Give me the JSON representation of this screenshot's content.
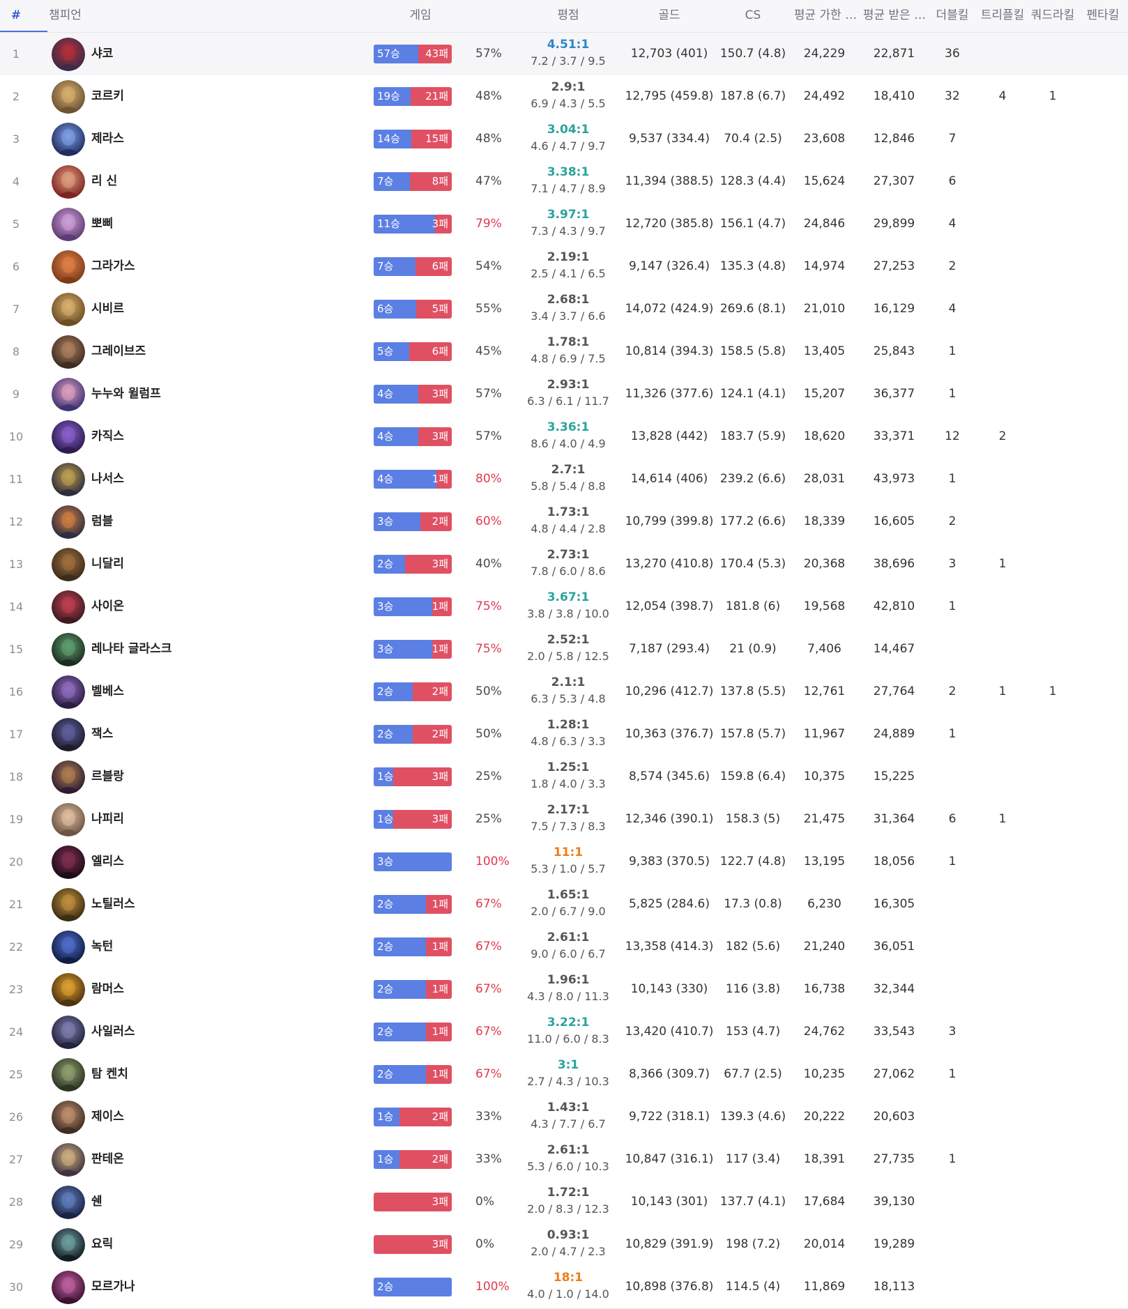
{
  "header": {
    "rank": "#",
    "champion": "챔피언",
    "games": "게임",
    "kda": "평점",
    "gold": "골드",
    "cs": "CS",
    "damage_dealt": "평균 가한 …",
    "damage_taken": "평균 받은 …",
    "double_kill": "더블킬",
    "triple_kill": "트리플킬",
    "quadra_kill": "쿼드라킬",
    "penta_kill": "펜타킬"
  },
  "colors": {
    "win": "#5b7fe3",
    "loss": "#e05063",
    "pct_red": "#e0394f",
    "kda_teal": "#2ba39b",
    "kda_blue": "#2f86c9",
    "kda_orange": "#f07c1a"
  },
  "rows": [
    {
      "rank": "1",
      "name": "샤코",
      "wins": 57,
      "losses": 43,
      "wins_label": "57승",
      "losses_label": "43패",
      "pct": "57%",
      "pct_style": "gray",
      "kda": "4.51:1",
      "kda_style": "blue",
      "kda_detail": "7.2 / 3.7 / 9.5",
      "gold": "12,703 (401)",
      "cs": "150.7 (4.8)",
      "dealt": "24,229",
      "taken": "22,871",
      "double": "36",
      "triple": "",
      "quadra": "",
      "penta": "",
      "avatar": [
        "#3a2a48",
        "#b3303a"
      ]
    },
    {
      "rank": "2",
      "name": "코르키",
      "wins": 19,
      "losses": 21,
      "wins_label": "19승",
      "losses_label": "21패",
      "pct": "48%",
      "pct_style": "gray",
      "kda": "2.9:1",
      "kda_style": "normal",
      "kda_detail": "6.9 / 4.3 / 5.5",
      "gold": "12,795 (459.8)",
      "cs": "187.8 (6.7)",
      "dealt": "24,492",
      "taken": "18,410",
      "double": "32",
      "triple": "4",
      "quadra": "1",
      "penta": "",
      "avatar": [
        "#6a5030",
        "#d9b070"
      ]
    },
    {
      "rank": "3",
      "name": "제라스",
      "wins": 14,
      "losses": 15,
      "wins_label": "14승",
      "losses_label": "15패",
      "pct": "48%",
      "pct_style": "gray",
      "kda": "3.04:1",
      "kda_style": "teal",
      "kda_detail": "4.6 / 4.7 / 9.7",
      "gold": "9,537 (334.4)",
      "cs": "70.4 (2.5)",
      "dealt": "23,608",
      "taken": "12,846",
      "double": "7",
      "triple": "",
      "quadra": "",
      "penta": "",
      "avatar": [
        "#1e2a5a",
        "#7fa0e8"
      ]
    },
    {
      "rank": "4",
      "name": "리 신",
      "wins": 7,
      "losses": 8,
      "wins_label": "7승",
      "losses_label": "8패",
      "pct": "47%",
      "pct_style": "gray",
      "kda": "3.38:1",
      "kda_style": "teal",
      "kda_detail": "7.1 / 4.7 / 8.9",
      "gold": "11,394 (388.5)",
      "cs": "128.3 (4.4)",
      "dealt": "15,624",
      "taken": "27,307",
      "double": "6",
      "triple": "",
      "quadra": "",
      "penta": "",
      "avatar": [
        "#7a2020",
        "#e0a080"
      ]
    },
    {
      "rank": "5",
      "name": "뽀삐",
      "wins": 11,
      "losses": 3,
      "wins_label": "11승",
      "losses_label": "3패",
      "pct": "79%",
      "pct_style": "red",
      "kda": "3.97:1",
      "kda_style": "teal",
      "kda_detail": "7.3 / 4.3 / 9.7",
      "gold": "12,720 (385.8)",
      "cs": "156.1 (4.7)",
      "dealt": "24,846",
      "taken": "29,899",
      "double": "4",
      "triple": "",
      "quadra": "",
      "penta": "",
      "avatar": [
        "#5a3a70",
        "#d0a0d8"
      ]
    },
    {
      "rank": "6",
      "name": "그라가스",
      "wins": 7,
      "losses": 6,
      "wins_label": "7승",
      "losses_label": "6패",
      "pct": "54%",
      "pct_style": "gray",
      "kda": "2.19:1",
      "kda_style": "normal",
      "kda_detail": "2.5 / 4.1 / 6.5",
      "gold": "9,147 (326.4)",
      "cs": "135.3 (4.8)",
      "dealt": "14,974",
      "taken": "27,253",
      "double": "2",
      "triple": "",
      "quadra": "",
      "penta": "",
      "avatar": [
        "#7a3a18",
        "#e08048"
      ]
    },
    {
      "rank": "7",
      "name": "시비르",
      "wins": 6,
      "losses": 5,
      "wins_label": "6승",
      "losses_label": "5패",
      "pct": "55%",
      "pct_style": "gray",
      "kda": "2.68:1",
      "kda_style": "normal",
      "kda_detail": "3.4 / 3.7 / 6.6",
      "gold": "14,072 (424.9)",
      "cs": "269.6 (8.1)",
      "dealt": "21,010",
      "taken": "16,129",
      "double": "4",
      "triple": "",
      "quadra": "",
      "penta": "",
      "avatar": [
        "#6a4a20",
        "#d8b070"
      ]
    },
    {
      "rank": "8",
      "name": "그레이브즈",
      "wins": 5,
      "losses": 6,
      "wins_label": "5승",
      "losses_label": "6패",
      "pct": "45%",
      "pct_style": "gray",
      "kda": "1.78:1",
      "kda_style": "normal",
      "kda_detail": "4.8 / 6.9 / 7.5",
      "gold": "10,814 (394.3)",
      "cs": "158.5 (5.8)",
      "dealt": "13,405",
      "taken": "25,843",
      "double": "1",
      "triple": "",
      "quadra": "",
      "penta": "",
      "avatar": [
        "#3a2a20",
        "#b08060"
      ]
    },
    {
      "rank": "9",
      "name": "누누와 윌럼프",
      "wins": 4,
      "losses": 3,
      "wins_label": "4승",
      "losses_label": "3패",
      "pct": "57%",
      "pct_style": "gray",
      "kda": "2.93:1",
      "kda_style": "normal",
      "kda_detail": "6.3 / 6.1 / 11.7",
      "gold": "11,326 (377.6)",
      "cs": "124.1 (4.1)",
      "dealt": "15,207",
      "taken": "36,377",
      "double": "1",
      "triple": "",
      "quadra": "",
      "penta": "",
      "avatar": [
        "#3a3070",
        "#e0a0c0"
      ]
    },
    {
      "rank": "10",
      "name": "카직스",
      "wins": 4,
      "losses": 3,
      "wins_label": "4승",
      "losses_label": "3패",
      "pct": "57%",
      "pct_style": "gray",
      "kda": "3.36:1",
      "kda_style": "teal",
      "kda_detail": "8.6 / 4.0 / 4.9",
      "gold": "13,828 (442)",
      "cs": "183.7 (5.9)",
      "dealt": "18,620",
      "taken": "33,371",
      "double": "12",
      "triple": "2",
      "quadra": "",
      "penta": "",
      "avatar": [
        "#2a1a4a",
        "#8a60d0"
      ]
    },
    {
      "rank": "11",
      "name": "나서스",
      "wins": 4,
      "losses": 1,
      "wins_label": "4승",
      "losses_label": "1패",
      "pct": "80%",
      "pct_style": "red",
      "kda": "2.7:1",
      "kda_style": "normal",
      "kda_detail": "5.8 / 5.4 / 8.8",
      "gold": "14,614 (406)",
      "cs": "239.2 (6.6)",
      "dealt": "28,031",
      "taken": "43,973",
      "double": "1",
      "triple": "",
      "quadra": "",
      "penta": "",
      "avatar": [
        "#2a2a3a",
        "#c0a050"
      ]
    },
    {
      "rank": "12",
      "name": "럼블",
      "wins": 3,
      "losses": 2,
      "wins_label": "3승",
      "losses_label": "2패",
      "pct": "60%",
      "pct_style": "red",
      "kda": "1.73:1",
      "kda_style": "normal",
      "kda_detail": "4.8 / 4.4 / 2.8",
      "gold": "10,799 (399.8)",
      "cs": "177.2 (6.6)",
      "dealt": "18,339",
      "taken": "16,605",
      "double": "2",
      "triple": "",
      "quadra": "",
      "penta": "",
      "avatar": [
        "#2a2a40",
        "#d08040"
      ]
    },
    {
      "rank": "13",
      "name": "니달리",
      "wins": 2,
      "losses": 3,
      "wins_label": "2승",
      "losses_label": "3패",
      "pct": "40%",
      "pct_style": "gray",
      "kda": "2.73:1",
      "kda_style": "normal",
      "kda_detail": "7.8 / 6.0 / 8.6",
      "gold": "13,270 (410.8)",
      "cs": "170.4 (5.3)",
      "dealt": "20,368",
      "taken": "38,696",
      "double": "3",
      "triple": "1",
      "quadra": "",
      "penta": "",
      "avatar": [
        "#3a2a18",
        "#a07040"
      ]
    },
    {
      "rank": "14",
      "name": "사이온",
      "wins": 3,
      "losses": 1,
      "wins_label": "3승",
      "losses_label": "1패",
      "pct": "75%",
      "pct_style": "red",
      "kda": "3.67:1",
      "kda_style": "teal",
      "kda_detail": "3.8 / 3.8 / 10.0",
      "gold": "12,054 (398.7)",
      "cs": "181.8 (6)",
      "dealt": "19,568",
      "taken": "42,810",
      "double": "1",
      "triple": "",
      "quadra": "",
      "penta": "",
      "avatar": [
        "#3a1a20",
        "#c04050"
      ]
    },
    {
      "rank": "15",
      "name": "레나타 글라스크",
      "wins": 3,
      "losses": 1,
      "wins_label": "3승",
      "losses_label": "1패",
      "pct": "75%",
      "pct_style": "red",
      "kda": "2.52:1",
      "kda_style": "normal",
      "kda_detail": "2.0 / 5.8 / 12.5",
      "gold": "7,187 (293.4)",
      "cs": "21 (0.9)",
      "dealt": "7,406",
      "taken": "14,467",
      "double": "",
      "triple": "",
      "quadra": "",
      "penta": "",
      "avatar": [
        "#1a2a20",
        "#60a070"
      ]
    },
    {
      "rank": "16",
      "name": "벨베스",
      "wins": 2,
      "losses": 2,
      "wins_label": "2승",
      "losses_label": "2패",
      "pct": "50%",
      "pct_style": "gray",
      "kda": "2.1:1",
      "kda_style": "normal",
      "kda_detail": "6.3 / 5.3 / 4.8",
      "gold": "10,296 (412.7)",
      "cs": "137.8 (5.5)",
      "dealt": "12,761",
      "taken": "27,764",
      "double": "2",
      "triple": "1",
      "quadra": "1",
      "penta": "",
      "avatar": [
        "#2a1a40",
        "#9070c0"
      ]
    },
    {
      "rank": "17",
      "name": "잭스",
      "wins": 2,
      "losses": 2,
      "wins_label": "2승",
      "losses_label": "2패",
      "pct": "50%",
      "pct_style": "gray",
      "kda": "1.28:1",
      "kda_style": "normal",
      "kda_detail": "4.8 / 6.3 / 3.3",
      "gold": "10,363 (376.7)",
      "cs": "157.8 (5.7)",
      "dealt": "11,967",
      "taken": "24,889",
      "double": "1",
      "triple": "",
      "quadra": "",
      "penta": "",
      "avatar": [
        "#1a1a28",
        "#6060a0"
      ]
    },
    {
      "rank": "18",
      "name": "르블랑",
      "wins": 1,
      "losses": 3,
      "wins_label": "1승",
      "losses_label": "3패",
      "pct": "25%",
      "pct_style": "gray",
      "kda": "1.25:1",
      "kda_style": "normal",
      "kda_detail": "1.8 / 4.0 / 3.3",
      "gold": "8,574 (345.6)",
      "cs": "159.8 (6.4)",
      "dealt": "10,375",
      "taken": "15,225",
      "double": "",
      "triple": "",
      "quadra": "",
      "penta": "",
      "avatar": [
        "#2a1a30",
        "#b08050"
      ]
    },
    {
      "rank": "19",
      "name": "나피리",
      "wins": 1,
      "losses": 3,
      "wins_label": "1승",
      "losses_label": "3패",
      "pct": "25%",
      "pct_style": "gray",
      "kda": "2.17:1",
      "kda_style": "normal",
      "kda_detail": "7.5 / 7.3 / 8.3",
      "gold": "12,346 (390.1)",
      "cs": "158.3 (5)",
      "dealt": "21,475",
      "taken": "31,364",
      "double": "6",
      "triple": "1",
      "quadra": "",
      "penta": "",
      "avatar": [
        "#6a5040",
        "#e0c0a0"
      ]
    },
    {
      "rank": "20",
      "name": "엘리스",
      "wins": 3,
      "losses": 0,
      "wins_label": "3승",
      "losses_label": "",
      "pct": "100%",
      "pct_style": "red",
      "kda": "11:1",
      "kda_style": "orange",
      "kda_detail": "5.3 / 1.0 / 5.7",
      "gold": "9,383 (370.5)",
      "cs": "122.7 (4.8)",
      "dealt": "13,195",
      "taken": "18,056",
      "double": "1",
      "triple": "",
      "quadra": "",
      "penta": "",
      "avatar": [
        "#1a0a18",
        "#803050"
      ]
    },
    {
      "rank": "21",
      "name": "노틸러스",
      "wins": 2,
      "losses": 1,
      "wins_label": "2승",
      "losses_label": "1패",
      "pct": "67%",
      "pct_style": "red",
      "kda": "1.65:1",
      "kda_style": "normal",
      "kda_detail": "2.0 / 6.7 / 9.0",
      "gold": "5,825 (284.6)",
      "cs": "17.3 (0.8)",
      "dealt": "6,230",
      "taken": "16,305",
      "double": "",
      "triple": "",
      "quadra": "",
      "penta": "",
      "avatar": [
        "#3a2a10",
        "#c09040"
      ]
    },
    {
      "rank": "22",
      "name": "녹턴",
      "wins": 2,
      "losses": 1,
      "wins_label": "2승",
      "losses_label": "1패",
      "pct": "67%",
      "pct_style": "red",
      "kda": "2.61:1",
      "kda_style": "normal",
      "kda_detail": "9.0 / 6.0 / 6.7",
      "gold": "13,358 (414.3)",
      "cs": "182 (5.6)",
      "dealt": "21,240",
      "taken": "36,051",
      "double": "",
      "triple": "",
      "quadra": "",
      "penta": "",
      "avatar": [
        "#101a40",
        "#5070d0"
      ]
    },
    {
      "rank": "23",
      "name": "람머스",
      "wins": 2,
      "losses": 1,
      "wins_label": "2승",
      "losses_label": "1패",
      "pct": "67%",
      "pct_style": "red",
      "kda": "1.96:1",
      "kda_style": "normal",
      "kda_detail": "4.3 / 8.0 / 11.3",
      "gold": "10,143 (330)",
      "cs": "116 (3.8)",
      "dealt": "16,738",
      "taken": "32,344",
      "double": "",
      "triple": "",
      "quadra": "",
      "penta": "",
      "avatar": [
        "#4a3010",
        "#e0a030"
      ]
    },
    {
      "rank": "24",
      "name": "사일러스",
      "wins": 2,
      "losses": 1,
      "wins_label": "2승",
      "losses_label": "1패",
      "pct": "67%",
      "pct_style": "red",
      "kda": "3.22:1",
      "kda_style": "teal",
      "kda_detail": "11.0 / 6.0 / 8.3",
      "gold": "13,420 (410.7)",
      "cs": "153 (4.7)",
      "dealt": "24,762",
      "taken": "33,543",
      "double": "3",
      "triple": "",
      "quadra": "",
      "penta": "",
      "avatar": [
        "#20203a",
        "#8080b0"
      ]
    },
    {
      "rank": "25",
      "name": "탐 켄치",
      "wins": 2,
      "losses": 1,
      "wins_label": "2승",
      "losses_label": "1패",
      "pct": "67%",
      "pct_style": "red",
      "kda": "3:1",
      "kda_style": "teal",
      "kda_detail": "2.7 / 4.3 / 10.3",
      "gold": "8,366 (309.7)",
      "cs": "67.7 (2.5)",
      "dealt": "10,235",
      "taken": "27,062",
      "double": "1",
      "triple": "",
      "quadra": "",
      "penta": "",
      "avatar": [
        "#2a3020",
        "#90a070"
      ]
    },
    {
      "rank": "26",
      "name": "제이스",
      "wins": 1,
      "losses": 2,
      "wins_label": "1승",
      "losses_label": "2패",
      "pct": "33%",
      "pct_style": "gray",
      "kda": "1.43:1",
      "kda_style": "normal",
      "kda_detail": "4.3 / 7.7 / 6.7",
      "gold": "9,722 (318.1)",
      "cs": "139.3 (4.6)",
      "dealt": "20,222",
      "taken": "20,603",
      "double": "",
      "triple": "",
      "quadra": "",
      "penta": "",
      "avatar": [
        "#3a2a20",
        "#c09070"
      ]
    },
    {
      "rank": "27",
      "name": "판테온",
      "wins": 1,
      "losses": 2,
      "wins_label": "1승",
      "losses_label": "2패",
      "pct": "33%",
      "pct_style": "gray",
      "kda": "2.61:1",
      "kda_style": "normal",
      "kda_detail": "5.3 / 6.0 / 10.3",
      "gold": "10,847 (316.1)",
      "cs": "117 (3.4)",
      "dealt": "18,391",
      "taken": "27,735",
      "double": "1",
      "triple": "",
      "quadra": "",
      "penta": "",
      "avatar": [
        "#3a3040",
        "#d0b080"
      ]
    },
    {
      "rank": "28",
      "name": "쉔",
      "wins": 0,
      "losses": 3,
      "wins_label": "",
      "losses_label": "3패",
      "pct": "0%",
      "pct_style": "gray",
      "kda": "1.72:1",
      "kda_style": "normal",
      "kda_detail": "2.0 / 8.3 / 12.3",
      "gold": "10,143 (301)",
      "cs": "137.7 (4.1)",
      "dealt": "17,684",
      "taken": "39,130",
      "double": "",
      "triple": "",
      "quadra": "",
      "penta": "",
      "avatar": [
        "#1a2040",
        "#6080c0"
      ]
    },
    {
      "rank": "29",
      "name": "요릭",
      "wins": 0,
      "losses": 3,
      "wins_label": "",
      "losses_label": "3패",
      "pct": "0%",
      "pct_style": "gray",
      "kda": "0.93:1",
      "kda_style": "normal",
      "kda_detail": "2.0 / 4.7 / 2.3",
      "gold": "10,829 (391.9)",
      "cs": "198 (7.2)",
      "dealt": "20,014",
      "taken": "19,289",
      "double": "",
      "triple": "",
      "quadra": "",
      "penta": "",
      "avatar": [
        "#101820",
        "#70a0a0"
      ]
    },
    {
      "rank": "30",
      "name": "모르가나",
      "wins": 2,
      "losses": 0,
      "wins_label": "2승",
      "losses_label": "",
      "pct": "100%",
      "pct_style": "red",
      "kda": "18:1",
      "kda_style": "orange",
      "kda_detail": "4.0 / 1.0 / 14.0",
      "gold": "10,898 (376.8)",
      "cs": "114.5 (4)",
      "dealt": "11,869",
      "taken": "18,113",
      "double": "",
      "triple": "",
      "quadra": "",
      "penta": "",
      "avatar": [
        "#3a1030",
        "#c060a0"
      ]
    }
  ]
}
